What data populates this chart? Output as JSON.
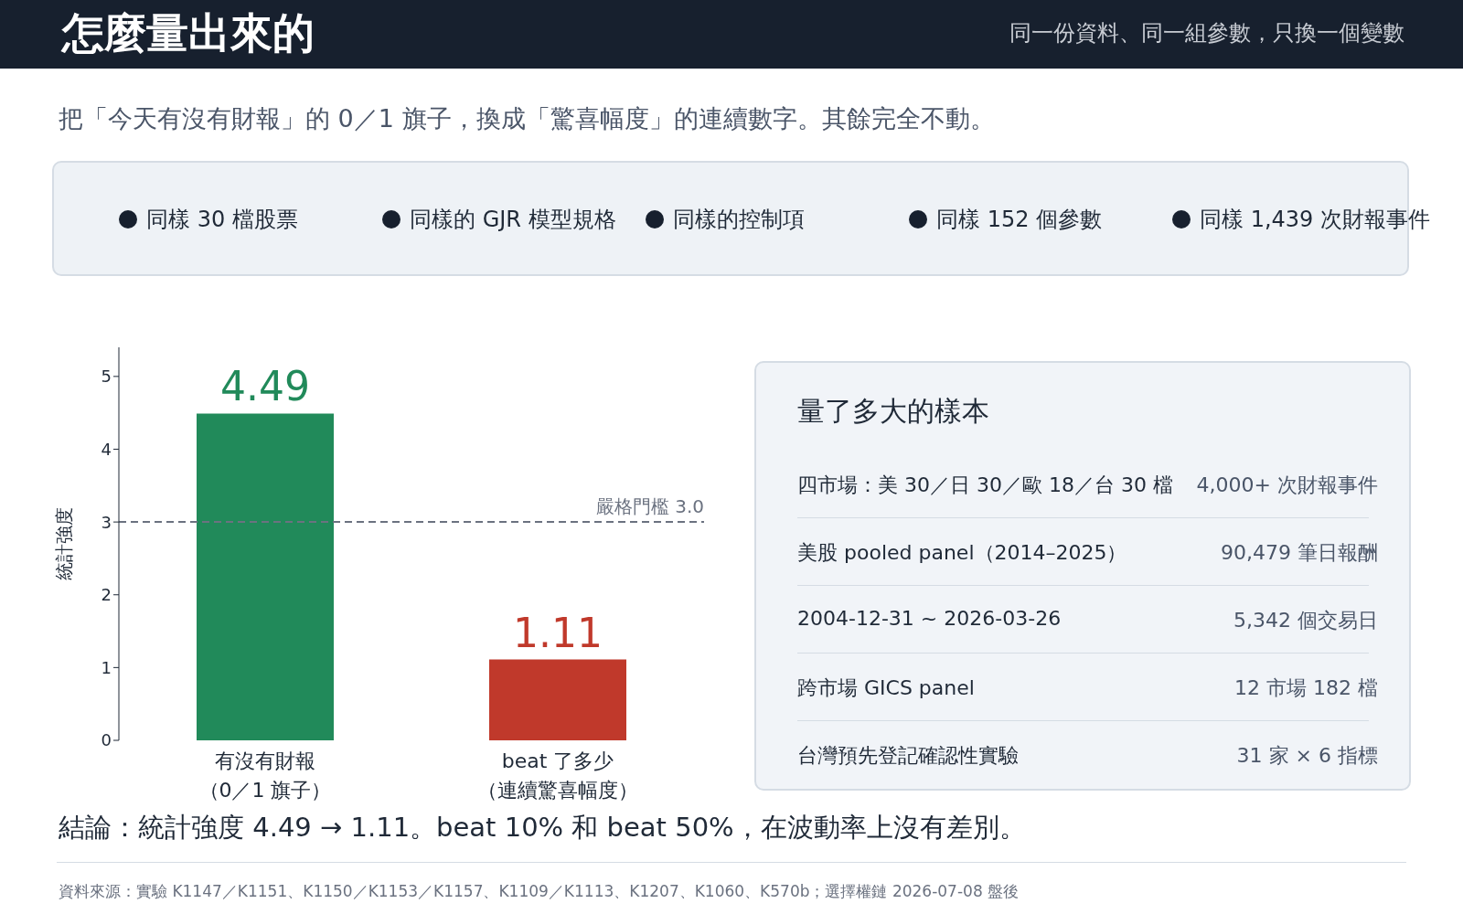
{
  "chart_data": {
    "type": "bar",
    "title": "怎麼量出來的",
    "subtitle": "同一份資料、同一組參數，只換一個變數",
    "categories": [
      "有沒有財報（0／1 旗子）",
      "beat 了多少（連續驚喜幅度）"
    ],
    "values": [
      4.49,
      1.11
    ],
    "colors": [
      "#218a5a",
      "#c0392b"
    ],
    "data_labels": true,
    "ylabel": "統計強度",
    "ylim": [
      0,
      5.4
    ],
    "yticks": [
      0,
      1,
      2,
      3,
      4,
      5
    ],
    "ref_lines": [
      {
        "axis": "y",
        "value": 3,
        "label": "嚴格門檻 3.0",
        "color": "#6b7280",
        "line_style": "dashed"
      }
    ],
    "annotations": [
      "把「今天有沒有財報」的 0／1 旗子，換成「驚喜幅度」的連續數字。其餘完全不動。",
      "同樣 30 檔股票",
      "同樣的 GJR 模型規格",
      "同樣的控制項",
      "同樣 152 個參數",
      "同樣 1,439 次財報事件",
      "量了多大的樣本",
      "四市場：美 30／日 30／歐 18／台 30 檔",
      "4,000+ 次財報事件",
      "美股 pooled panel（2014–2025）",
      "90,479 筆日報酬",
      "2004-12-31 ~ 2026-03-26",
      "5,342 個交易日",
      "跨市場 GICS panel",
      "12 市場 182 檔",
      "台灣預先登記確認性實驗",
      "31 家 × 6 指標",
      "結論：統計強度 4.49 → 1.11。beat 10% 和 beat 50%，在波動率上沒有差別。",
      "資料來源：實驗 K1147／K1151、K1150／K1153／K1157、K1109／K1113、K1207、K1060、K570b；選擇權鏈 2026-07-08 盤後"
    ]
  }
}
